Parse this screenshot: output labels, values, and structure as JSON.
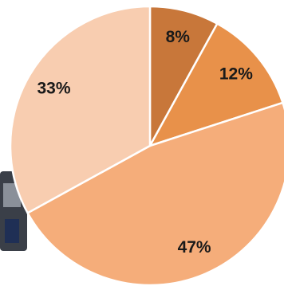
{
  "chart_data": {
    "type": "pie",
    "values": [
      8,
      12,
      47,
      33
    ],
    "value_labels": [
      "8%",
      "12%",
      "47%",
      "33%"
    ],
    "colors": [
      "#c8773a",
      "#e8914a",
      "#f5ad7a",
      "#f8cdb0"
    ]
  }
}
